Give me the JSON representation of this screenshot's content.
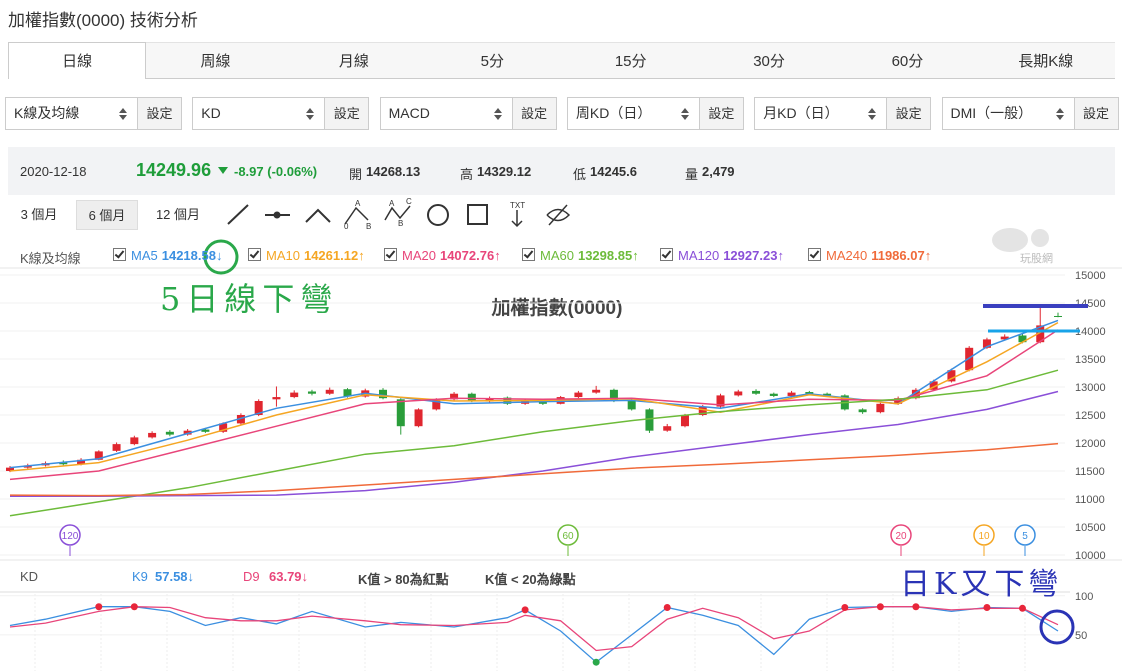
{
  "header": {
    "title": "加權指數(0000) 技術分析"
  },
  "tabs": {
    "items": [
      "日線",
      "周線",
      "月線",
      "5分",
      "15分",
      "30分",
      "60分",
      "長期K線"
    ],
    "active": 0
  },
  "selectors": [
    {
      "label": "K線及均線",
      "button": "設定"
    },
    {
      "label": "KD",
      "button": "設定"
    },
    {
      "label": "MACD",
      "button": "設定"
    },
    {
      "label": "周KD（日）",
      "button": "設定"
    },
    {
      "label": "月KD（日）",
      "button": "設定"
    },
    {
      "label": "DMI（一般）",
      "button": "設定"
    }
  ],
  "quote": {
    "date": "2020-12-18",
    "price": 14249.96,
    "change": "-8.97 (-0.06%)",
    "open_label": "開",
    "open": 14268.13,
    "high_label": "高",
    "high": 14329.12,
    "low_label": "低",
    "low": 14245.6,
    "volume_label": "量",
    "volume": "2,479"
  },
  "periods": {
    "items": [
      "3 個月",
      "6 個月",
      "12 個月"
    ],
    "active": 1
  },
  "tool_text": {
    "a": "A",
    "b": "B",
    "c": "C",
    "zero": "0",
    "txt": "TXT"
  },
  "watermark": "玩股網",
  "annotations": {
    "ma5_note": "5日線下彎",
    "kd_note": "日K又下彎"
  },
  "chart_data": [
    {
      "type": "candlestick",
      "title": "加權指數(0000)",
      "legend_title": "K線及均線",
      "up_color": "#e0262f",
      "down_color": "#2a9d3a",
      "ohlc": [
        [
          11500,
          11590,
          11480,
          11560
        ],
        [
          11560,
          11630,
          11540,
          11600
        ],
        [
          11600,
          11670,
          11580,
          11640
        ],
        [
          11660,
          11690,
          11600,
          11620
        ],
        [
          11620,
          11730,
          11600,
          11700
        ],
        [
          11700,
          11870,
          11690,
          11850
        ],
        [
          11860,
          12010,
          11840,
          11980
        ],
        [
          11980,
          12130,
          11960,
          12100
        ],
        [
          12100,
          12210,
          12080,
          12180
        ],
        [
          12200,
          12230,
          12120,
          12150
        ],
        [
          12150,
          12250,
          12130,
          12220
        ],
        [
          12240,
          12270,
          12180,
          12200
        ],
        [
          12200,
          12370,
          12180,
          12350
        ],
        [
          12350,
          12530,
          12330,
          12500
        ],
        [
          12500,
          12780,
          12480,
          12750
        ],
        [
          12780,
          13010,
          12650,
          12820
        ],
        [
          12820,
          12940,
          12800,
          12900
        ],
        [
          12920,
          12950,
          12850,
          12880
        ],
        [
          12880,
          12990,
          12860,
          12950
        ],
        [
          12960,
          12980,
          12810,
          12830
        ],
        [
          12830,
          12970,
          12810,
          12940
        ],
        [
          12950,
          12980,
          12780,
          12800
        ],
        [
          12780,
          12800,
          12150,
          12300
        ],
        [
          12300,
          12620,
          12280,
          12600
        ],
        [
          12600,
          12800,
          12580,
          12780
        ],
        [
          12780,
          12910,
          12760,
          12880
        ],
        [
          12880,
          12900,
          12730,
          12750
        ],
        [
          12740,
          12830,
          12720,
          12800
        ],
        [
          12810,
          12830,
          12680,
          12700
        ],
        [
          12700,
          12790,
          12680,
          12760
        ],
        [
          12770,
          12790,
          12680,
          12700
        ],
        [
          12700,
          12840,
          12690,
          12820
        ],
        [
          12820,
          12930,
          12800,
          12900
        ],
        [
          12900,
          13020,
          12880,
          12950
        ],
        [
          12950,
          12970,
          12730,
          12750
        ],
        [
          12760,
          12780,
          12580,
          12600
        ],
        [
          12600,
          12620,
          12180,
          12220
        ],
        [
          12220,
          12340,
          12200,
          12300
        ],
        [
          12300,
          12520,
          12280,
          12500
        ],
        [
          12500,
          12680,
          12480,
          12650
        ],
        [
          12650,
          12880,
          12630,
          12850
        ],
        [
          12850,
          12950,
          12830,
          12920
        ],
        [
          12930,
          12960,
          12860,
          12880
        ],
        [
          12880,
          12900,
          12820,
          12840
        ],
        [
          12840,
          12930,
          12820,
          12900
        ],
        [
          12910,
          12930,
          12860,
          12880
        ],
        [
          12880,
          12900,
          12830,
          12850
        ],
        [
          12850,
          12870,
          12580,
          12600
        ],
        [
          12600,
          12620,
          12520,
          12550
        ],
        [
          12550,
          12720,
          12530,
          12700
        ],
        [
          12700,
          12830,
          12680,
          12800
        ],
        [
          12800,
          12980,
          12780,
          12950
        ],
        [
          12950,
          13130,
          12930,
          13100
        ],
        [
          13100,
          13330,
          13080,
          13300
        ],
        [
          13300,
          13730,
          13280,
          13700
        ],
        [
          13700,
          13880,
          13680,
          13850
        ],
        [
          13850,
          13940,
          13830,
          13900
        ],
        [
          13920,
          13950,
          13780,
          13800
        ],
        [
          13800,
          14420,
          13780,
          14100
        ],
        [
          14268.13,
          14329.12,
          14245.6,
          14249.96
        ]
      ],
      "ma_x": [
        0,
        5,
        10,
        15,
        20,
        25,
        30,
        35,
        40,
        45,
        50,
        55,
        59
      ],
      "series": [
        {
          "name": "MA5",
          "color": "#3b8fe0",
          "last": 14218.58,
          "trend": "↓",
          "marker": "5",
          "values": [
            11560,
            11720,
            12170,
            12620,
            12890,
            12700,
            12740,
            12760,
            12620,
            12880,
            12700,
            13720,
            14190
          ]
        },
        {
          "name": "MA10",
          "color": "#f5a623",
          "last": 14261.12,
          "trend": "↑",
          "marker": "10",
          "values": [
            11500,
            11650,
            12050,
            12500,
            12860,
            12750,
            12760,
            12790,
            12550,
            12860,
            12700,
            13450,
            14150
          ]
        },
        {
          "name": "MA20",
          "color": "#e8457a",
          "last": 14072.76,
          "trend": "↑",
          "marker": "20",
          "values": [
            11350,
            11500,
            11900,
            12300,
            12700,
            12800,
            12780,
            12800,
            12680,
            12780,
            12760,
            13200,
            14020
          ]
        },
        {
          "name": "MA60",
          "color": "#6dbb3a",
          "last": 13298.85,
          "trend": "↑",
          "marker": "60",
          "values": [
            10700,
            10950,
            11200,
            11500,
            11800,
            11950,
            12200,
            12400,
            12560,
            12680,
            12780,
            12950,
            13300
          ]
        },
        {
          "name": "MA120",
          "color": "#8a4fd8",
          "last": 12927.23,
          "trend": "↑",
          "marker": "120",
          "values": [
            11050,
            11050,
            11060,
            11070,
            11150,
            11300,
            11500,
            11750,
            11950,
            12150,
            12330,
            12600,
            12920
          ]
        },
        {
          "name": "MA240",
          "color": "#f06a3a",
          "last": 11986.07,
          "trend": "↑",
          "values": [
            11070,
            11060,
            11080,
            11150,
            11250,
            11350,
            11450,
            11550,
            11620,
            11700,
            11780,
            11880,
            11990
          ]
        }
      ],
      "ylim": [
        10000,
        15000
      ],
      "yticks": [
        10000,
        10500,
        11000,
        11500,
        12000,
        12500,
        13000,
        13500,
        14000,
        14500,
        15000
      ],
      "grid": true
    },
    {
      "type": "line",
      "title": "KD",
      "notes": [
        "K值 > 80為紅點",
        "K值 < 20為綠點"
      ],
      "dot_thresholds": {
        "high": 80,
        "low": 20
      },
      "dot_colors": {
        "high": "#e8263a",
        "low": "#2aa84a"
      },
      "x": [
        0,
        2,
        5,
        7,
        9,
        11,
        13,
        15,
        17,
        20,
        22,
        25,
        28,
        29,
        31,
        33,
        35,
        37,
        39,
        41,
        43,
        45,
        47,
        49,
        51,
        53,
        55,
        57,
        59
      ],
      "series": [
        {
          "name": "K9",
          "color": "#3b8fe0",
          "last": 57.58,
          "trend": "↓",
          "values": [
            62,
            70,
            86,
            86,
            80,
            62,
            72,
            64,
            80,
            60,
            66,
            60,
            72,
            82,
            55,
            15,
            50,
            85,
            75,
            62,
            25,
            70,
            85,
            86,
            86,
            80,
            85,
            84,
            55
          ]
        },
        {
          "name": "D9",
          "color": "#e8457a",
          "last": 63.79,
          "trend": "↓",
          "values": [
            60,
            65,
            80,
            86,
            85,
            72,
            68,
            68,
            74,
            68,
            63,
            62,
            66,
            75,
            68,
            30,
            35,
            70,
            84,
            72,
            45,
            55,
            82,
            86,
            86,
            82,
            84,
            84,
            63
          ]
        }
      ],
      "ylim": [
        5,
        110
      ],
      "yticks": [
        50,
        100
      ]
    }
  ]
}
